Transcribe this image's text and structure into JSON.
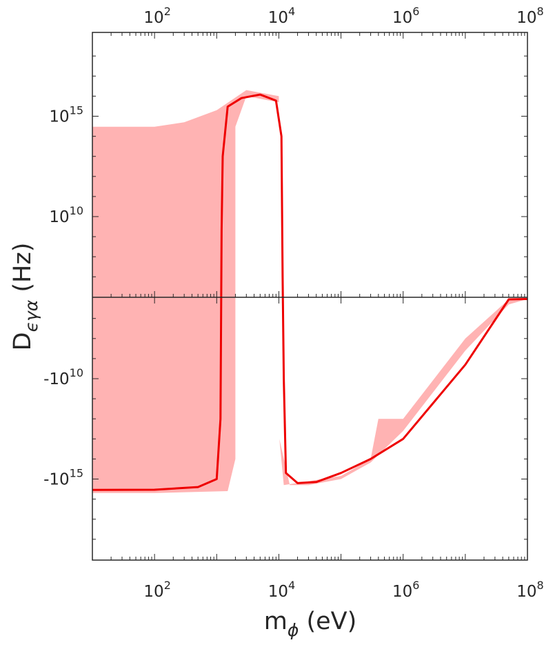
{
  "chart_data": {
    "type": "area",
    "title": "",
    "xlabel_main": "m",
    "xlabel_sub": "ϕ",
    "xlabel_unit": " (eV)",
    "ylabel_main": "D",
    "ylabel_sub": "ϵγα",
    "ylabel_unit": " (Hz)",
    "x_scale": "log",
    "xlim": [
      10,
      100000000
    ],
    "x_ticks": [
      {
        "value": 100,
        "base": "10",
        "exp": "2"
      },
      {
        "value": 10000,
        "base": "10",
        "exp": "4"
      },
      {
        "value": 1000000,
        "base": "10",
        "exp": "6"
      },
      {
        "value": 100000000,
        "base": "10",
        "exp": "8"
      }
    ],
    "y_scale": "symlog",
    "y_ticks": [
      {
        "value": 1000000000000000.0,
        "base": "10",
        "exp": "15"
      },
      {
        "value": 10000000000.0,
        "base": "10",
        "exp": "10"
      },
      {
        "value": -10000000000.0,
        "base": "-10",
        "exp": "10"
      },
      {
        "value": -1000000000000000.0,
        "base": "-10",
        "exp": "15"
      }
    ],
    "colors": {
      "line": "#ee0000",
      "band": "#ffb3b3",
      "axis": "#262626"
    },
    "series": [
      {
        "kind": "band",
        "upper": [
          {
            "x": 10,
            "y": 300000000000000.0
          },
          {
            "x": 100,
            "y": 300000000000000.0
          },
          {
            "x": 300,
            "y": 500000000000000.0
          },
          {
            "x": 1000,
            "y": 2000000000000000.0
          },
          {
            "x": 3000,
            "y": 2e+16
          },
          {
            "x": 10000,
            "y": 1e+16
          },
          {
            "x": 10500,
            "y": 1000000000.0
          }
        ],
        "gap_bottom": [
          {
            "x": 10500,
            "y": 1000000000.0
          },
          {
            "x": 10000,
            "y": 5000000000000000.0
          },
          {
            "x": 3000,
            "y": 1e+16
          },
          {
            "x": 2000,
            "y": 300000000000000.0
          },
          {
            "x": 2000,
            "y": -100000000000000.0
          }
        ],
        "lower_left": [
          {
            "x": 2000,
            "y": -100000000000000.0
          },
          {
            "x": 1500,
            "y": -4000000000000000.0
          },
          {
            "x": 100,
            "y": -5000000000000000.0
          },
          {
            "x": 10,
            "y": -5000000000000000.0
          }
        ]
      },
      {
        "kind": "band",
        "upper": [
          {
            "x": 10200,
            "y": -10000000000000.0
          },
          {
            "x": 12000,
            "y": -2000000000000000.0
          },
          {
            "x": 30000,
            "y": -1300000000000000.0
          },
          {
            "x": 100000,
            "y": -700000000000000.0
          },
          {
            "x": 300000,
            "y": -100000000000000.0
          },
          {
            "x": 400000,
            "y": -1000000000000.0
          },
          {
            "x": 1000000,
            "y": -1000000000000.0
          },
          {
            "x": 10000000,
            "y": -100000000.0
          },
          {
            "x": 50000000,
            "y": -1000000.0
          },
          {
            "x": 70000000,
            "y": -500000.0
          },
          {
            "x": 100000000,
            "y": -100000.0
          }
        ],
        "lower": [
          {
            "x": 100000000,
            "y": -100000.0
          },
          {
            "x": 50000000,
            "y": -2000000.0
          },
          {
            "x": 10000000,
            "y": -400000000.0
          },
          {
            "x": 1000000,
            "y": -4000000000000.0
          },
          {
            "x": 300000,
            "y": -150000000000000.0
          },
          {
            "x": 100000,
            "y": -1000000000000000.0
          },
          {
            "x": 30000,
            "y": -2000000000000000.0
          },
          {
            "x": 15000,
            "y": -2000000000000000.0
          }
        ]
      },
      {
        "kind": "line",
        "points": [
          {
            "x": 10,
            "y": -3500000000000000.0
          },
          {
            "x": 100,
            "y": -3400000000000000.0
          },
          {
            "x": 500,
            "y": -2500000000000000.0
          },
          {
            "x": 1000,
            "y": -1000000000000000.0
          },
          {
            "x": 1150,
            "y": -1000000000000.0
          },
          {
            "x": 1200,
            "y": 100000.0
          },
          {
            "x": 1250,
            "y": 10000000000000.0
          },
          {
            "x": 1500,
            "y": 3000000000000000.0
          },
          {
            "x": 2500,
            "y": 8000000000000000.0
          },
          {
            "x": 5000,
            "y": 1.2e+16
          },
          {
            "x": 9000,
            "y": 6000000000000000.0
          },
          {
            "x": 11000,
            "y": 100000000000000.0
          },
          {
            "x": 11500,
            "y": 10000000.0
          },
          {
            "x": 12000,
            "y": -10000000000.0
          },
          {
            "x": 13000,
            "y": -500000000000000.0
          },
          {
            "x": 20000,
            "y": -1600000000000000.0
          },
          {
            "x": 40000,
            "y": -1400000000000000.0
          },
          {
            "x": 100000,
            "y": -500000000000000.0
          },
          {
            "x": 300000,
            "y": -100000000000000.0
          },
          {
            "x": 1000000,
            "y": -10000000000000.0
          },
          {
            "x": 10000000,
            "y": -2000000000.0
          },
          {
            "x": 50000000,
            "y": -1000000.0
          },
          {
            "x": 70000000,
            "y": -500000.0
          },
          {
            "x": 100000000,
            "y": -100000.0
          }
        ]
      }
    ]
  }
}
